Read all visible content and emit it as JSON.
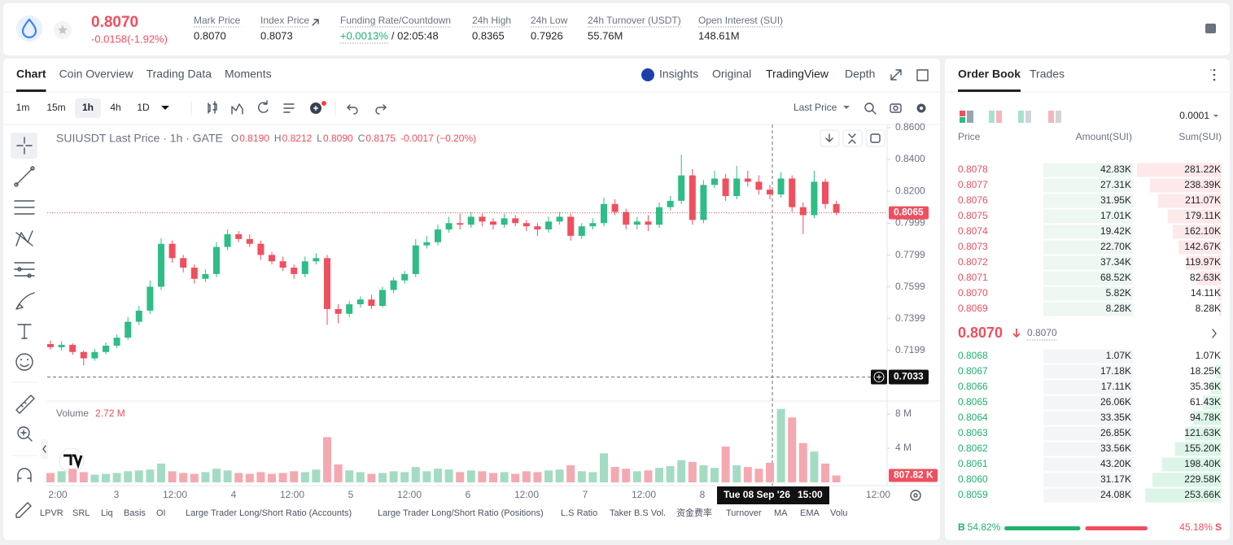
{
  "header": {
    "price": "0.8070",
    "change": "-0.0158(-1.92%)",
    "stats": [
      {
        "label": "Mark Price",
        "value": "0.8070"
      },
      {
        "label": "Index Price",
        "value": "0.8073"
      },
      {
        "label": "Funding Rate/Countdown",
        "value": "+0.0013%",
        "extra": "/ 02:05:48"
      },
      {
        "label": "24h High",
        "value": "0.8365"
      },
      {
        "label": "24h Low",
        "value": "0.7926"
      },
      {
        "label": "24h Turnover (USDT)",
        "value": "55.76M"
      },
      {
        "label": "Open Interest (SUI)",
        "value": "148.61M"
      }
    ]
  },
  "tabs": [
    "Chart",
    "Coin Overview",
    "Trading Data",
    "Moments"
  ],
  "view_tabs": [
    "Insights",
    "Original",
    "TradingView",
    "Depth"
  ],
  "intervals": [
    "1m",
    "15m",
    "1h",
    "4h",
    "1D"
  ],
  "price_type": "Last Price",
  "indicators": [
    "LPVR",
    "SRL",
    "Liq",
    "Basis",
    "OI",
    "Large Trader Long/Short Ratio (Accounts)",
    "Large Trader Long/Short Ratio (Positions)",
    "L.S Ratio",
    "Taker B.S Vol.",
    "资金费率",
    "Turnover",
    "MA",
    "EMA",
    "Volu"
  ],
  "chart_data": {
    "type": "candlestick",
    "title": "SUIUSDT Last Price · 1h · GATE",
    "ohlc": [
      {
        "key": "O",
        "value": "0.8190"
      },
      {
        "key": "H",
        "value": "0.8212"
      },
      {
        "key": "L",
        "value": "0.8090"
      },
      {
        "key": "C",
        "value": "0.8175"
      }
    ],
    "change": "-0.0017 (−0.20%)",
    "up_color": "#2ebd85",
    "down_color": "#ef4f5e",
    "ylim": [
      0.6887,
      0.862
    ],
    "yticks": [
      {
        "value": 0.86,
        "label": "0.8600"
      },
      {
        "value": 0.84,
        "label": "0.8400"
      },
      {
        "value": 0.82,
        "label": "0.8200"
      },
      {
        "value": 0.7999,
        "label": "0.7999"
      },
      {
        "value": 0.7799,
        "label": "0.7799"
      },
      {
        "value": 0.7599,
        "label": "0.7599"
      },
      {
        "value": 0.7399,
        "label": "0.7399"
      },
      {
        "value": 0.7199,
        "label": "0.7199"
      }
    ],
    "last_price": 0.8065,
    "crosshair": {
      "price": 0.7033,
      "date": "Tue 08 Sep '26",
      "time": "15:00"
    },
    "x_labels": [
      "2:00",
      "3",
      "12:00",
      "4",
      "12:00",
      "5",
      "12:00",
      "6",
      "12:00",
      "7",
      "12:00",
      "8",
      null,
      null,
      "12:00"
    ],
    "candles": [
      [
        0.724,
        0.7262,
        0.7205,
        0.722
      ],
      [
        0.722,
        0.7258,
        0.72,
        0.7235
      ],
      [
        0.7235,
        0.7245,
        0.7172,
        0.719
      ],
      [
        0.719,
        0.72,
        0.7105,
        0.715
      ],
      [
        0.715,
        0.721,
        0.7135,
        0.719
      ],
      [
        0.719,
        0.725,
        0.7175,
        0.723
      ],
      [
        0.723,
        0.73,
        0.7215,
        0.728
      ],
      [
        0.728,
        0.741,
        0.7265,
        0.738
      ],
      [
        0.738,
        0.748,
        0.736,
        0.745
      ],
      [
        0.745,
        0.764,
        0.743,
        0.76
      ],
      [
        0.76,
        0.7905,
        0.758,
        0.787
      ],
      [
        0.787,
        0.789,
        0.775,
        0.778
      ],
      [
        0.778,
        0.78,
        0.769,
        0.772
      ],
      [
        0.772,
        0.774,
        0.762,
        0.765
      ],
      [
        0.765,
        0.771,
        0.763,
        0.768
      ],
      [
        0.768,
        0.788,
        0.766,
        0.785
      ],
      [
        0.785,
        0.796,
        0.783,
        0.793
      ],
      [
        0.793,
        0.795,
        0.788,
        0.79
      ],
      [
        0.79,
        0.793,
        0.785,
        0.787
      ],
      [
        0.787,
        0.789,
        0.777,
        0.78
      ],
      [
        0.78,
        0.782,
        0.774,
        0.776
      ],
      [
        0.776,
        0.779,
        0.77,
        0.772
      ],
      [
        0.772,
        0.774,
        0.765,
        0.768
      ],
      [
        0.768,
        0.779,
        0.766,
        0.776
      ],
      [
        0.776,
        0.781,
        0.774,
        0.778
      ],
      [
        0.778,
        0.78,
        0.736,
        0.746
      ],
      [
        0.746,
        0.749,
        0.737,
        0.743
      ],
      [
        0.743,
        0.751,
        0.741,
        0.749
      ],
      [
        0.749,
        0.754,
        0.747,
        0.752
      ],
      [
        0.752,
        0.755,
        0.746,
        0.748
      ],
      [
        0.748,
        0.76,
        0.747,
        0.758
      ],
      [
        0.758,
        0.766,
        0.756,
        0.764
      ],
      [
        0.764,
        0.77,
        0.762,
        0.768
      ],
      [
        0.768,
        0.79,
        0.766,
        0.786
      ],
      [
        0.786,
        0.792,
        0.784,
        0.788
      ],
      [
        0.788,
        0.799,
        0.786,
        0.796
      ],
      [
        0.796,
        0.804,
        0.794,
        0.8
      ],
      [
        0.8,
        0.806,
        0.796,
        0.799
      ],
      [
        0.799,
        0.807,
        0.797,
        0.804
      ],
      [
        0.804,
        0.806,
        0.798,
        0.801
      ],
      [
        0.801,
        0.803,
        0.796,
        0.799
      ],
      [
        0.799,
        0.806,
        0.797,
        0.803
      ],
      [
        0.803,
        0.805,
        0.798,
        0.8
      ],
      [
        0.8,
        0.802,
        0.795,
        0.798
      ],
      [
        0.798,
        0.8,
        0.792,
        0.796
      ],
      [
        0.796,
        0.804,
        0.794,
        0.801
      ],
      [
        0.801,
        0.807,
        0.799,
        0.804
      ],
      [
        0.804,
        0.806,
        0.789,
        0.792
      ],
      [
        0.792,
        0.8,
        0.79,
        0.798
      ],
      [
        0.798,
        0.803,
        0.796,
        0.8
      ],
      [
        0.8,
        0.816,
        0.798,
        0.812
      ],
      [
        0.812,
        0.815,
        0.805,
        0.807
      ],
      [
        0.807,
        0.809,
        0.796,
        0.799
      ],
      [
        0.799,
        0.804,
        0.796,
        0.801
      ],
      [
        0.801,
        0.805,
        0.795,
        0.799
      ],
      [
        0.799,
        0.813,
        0.797,
        0.81
      ],
      [
        0.81,
        0.817,
        0.808,
        0.814
      ],
      [
        0.814,
        0.843,
        0.812,
        0.83
      ],
      [
        0.83,
        0.834,
        0.799,
        0.802
      ],
      [
        0.802,
        0.827,
        0.8,
        0.824
      ],
      [
        0.824,
        0.833,
        0.822,
        0.828
      ],
      [
        0.828,
        0.831,
        0.814,
        0.817
      ],
      [
        0.817,
        0.836,
        0.815,
        0.828
      ],
      [
        0.828,
        0.833,
        0.823,
        0.826
      ],
      [
        0.826,
        0.83,
        0.818,
        0.821
      ],
      [
        0.821,
        0.824,
        0.815,
        0.818
      ],
      [
        0.818,
        0.832,
        0.816,
        0.828
      ],
      [
        0.828,
        0.83,
        0.807,
        0.81
      ],
      [
        0.81,
        0.813,
        0.793,
        0.805
      ],
      [
        0.805,
        0.833,
        0.803,
        0.826
      ],
      [
        0.826,
        0.828,
        0.809,
        0.812
      ],
      [
        0.812,
        0.814,
        0.805,
        0.8065
      ]
    ],
    "volume": {
      "label": "Volume",
      "current": "2.72 M",
      "up_color": "#a3dcc3",
      "down_color": "#f4a9b1",
      "ylim": [
        0,
        9.14
      ],
      "yticks": [
        {
          "value": 4,
          "label": "4 M"
        },
        {
          "value": 8,
          "label": "8 M"
        }
      ],
      "last_label": "807.82 K",
      "values": [
        1.1,
        1.3,
        1.6,
        1.2,
        0.9,
        1.0,
        1.1,
        1.3,
        1.4,
        1.5,
        2.2,
        1.3,
        1.1,
        1.0,
        1.2,
        1.6,
        1.4,
        1.1,
        1.0,
        1.2,
        1.0,
        1.1,
        1.3,
        1.2,
        1.5,
        5.3,
        2.1,
        1.4,
        1.2,
        1.0,
        1.1,
        1.3,
        1.2,
        1.8,
        1.3,
        1.6,
        1.5,
        1.2,
        1.4,
        1.3,
        1.1,
        1.2,
        1.0,
        1.3,
        1.2,
        1.4,
        1.5,
        2.0,
        1.3,
        1.2,
        3.4,
        1.8,
        1.6,
        1.3,
        1.4,
        1.7,
        1.9,
        2.6,
        2.4,
        2.0,
        1.7,
        4.2,
        2.0,
        1.8,
        1.6,
        2.3,
        8.6,
        7.6,
        4.6,
        3.6,
        2.2,
        0.80782
      ]
    }
  },
  "orderbook": {
    "tabs": [
      "Order Book",
      "Trades"
    ],
    "precision": "0.0001",
    "columns": [
      "Price",
      "Amount(SUI)",
      "Sum(SUI)"
    ],
    "asks": [
      [
        "0.8078",
        "42.83K",
        "281.22K"
      ],
      [
        "0.8077",
        "27.31K",
        "238.39K"
      ],
      [
        "0.8076",
        "31.95K",
        "211.07K"
      ],
      [
        "0.8075",
        "17.01K",
        "179.11K"
      ],
      [
        "0.8074",
        "19.42K",
        "162.10K"
      ],
      [
        "0.8073",
        "22.70K",
        "142.67K"
      ],
      [
        "0.8072",
        "37.34K",
        "119.97K"
      ],
      [
        "0.8071",
        "68.52K",
        "82.63K"
      ],
      [
        "0.8070",
        "5.82K",
        "14.11K"
      ],
      [
        "0.8069",
        "8.28K",
        "8.28K"
      ]
    ],
    "mid": "0.8070",
    "mark": "0.8070",
    "bids": [
      [
        "0.8068",
        "1.07K",
        "1.07K"
      ],
      [
        "0.8067",
        "17.18K",
        "18.25K"
      ],
      [
        "0.8066",
        "17.11K",
        "35.36K"
      ],
      [
        "0.8065",
        "26.06K",
        "61.43K"
      ],
      [
        "0.8064",
        "33.35K",
        "94.78K"
      ],
      [
        "0.8063",
        "26.85K",
        "121.63K"
      ],
      [
        "0.8062",
        "33.56K",
        "155.20K"
      ],
      [
        "0.8061",
        "43.20K",
        "198.40K"
      ],
      [
        "0.8060",
        "31.17K",
        "229.58K"
      ],
      [
        "0.8059",
        "24.08K",
        "253.66K"
      ]
    ],
    "ratio": {
      "buy_key": "B",
      "buy": {
        "value": 54.82,
        "label": "54.82%"
      },
      "sell": {
        "value": 45.18,
        "label": "45.18%"
      },
      "sell_key": "S"
    }
  }
}
